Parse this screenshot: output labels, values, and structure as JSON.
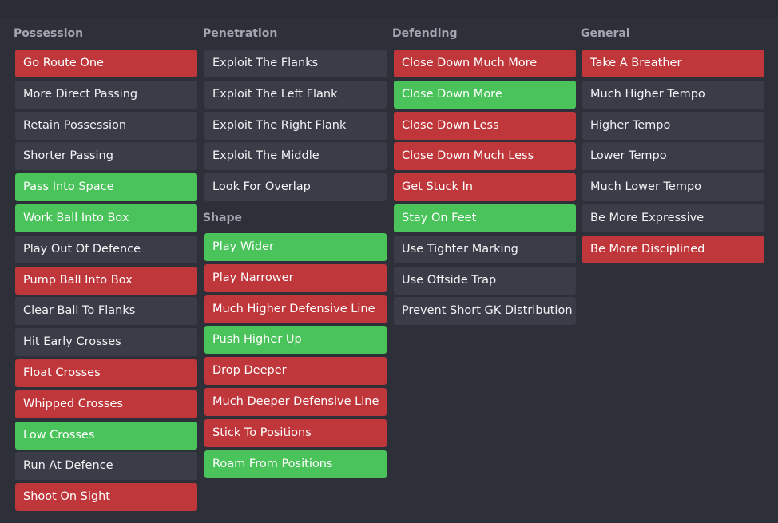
{
  "colors": {
    "red": "#c0373b",
    "green": "#49c35a",
    "neutral": "#3a3c47",
    "background": "#2e3039"
  },
  "columns": {
    "possession": {
      "title": "Possession",
      "items": [
        {
          "label": "Go Route One",
          "state": "red"
        },
        {
          "label": "More Direct Passing",
          "state": "neutral"
        },
        {
          "label": "Retain Possession",
          "state": "neutral"
        },
        {
          "label": "Shorter Passing",
          "state": "neutral"
        },
        {
          "label": "Pass Into Space",
          "state": "green"
        },
        {
          "label": "Work Ball Into Box",
          "state": "green"
        },
        {
          "label": "Play Out Of Defence",
          "state": "neutral"
        },
        {
          "label": "Pump Ball Into Box",
          "state": "red"
        },
        {
          "label": "Clear Ball To Flanks",
          "state": "neutral"
        },
        {
          "label": "Hit Early Crosses",
          "state": "neutral"
        },
        {
          "label": "Float Crosses",
          "state": "red"
        },
        {
          "label": "Whipped Crosses",
          "state": "red"
        },
        {
          "label": "Low Crosses",
          "state": "green"
        },
        {
          "label": "Run At Defence",
          "state": "neutral"
        },
        {
          "label": "Shoot On Sight",
          "state": "red"
        }
      ]
    },
    "penetration": {
      "title": "Penetration",
      "items": [
        {
          "label": "Exploit The Flanks",
          "state": "neutral"
        },
        {
          "label": "Exploit The Left Flank",
          "state": "neutral"
        },
        {
          "label": "Exploit The Right Flank",
          "state": "neutral"
        },
        {
          "label": "Exploit The Middle",
          "state": "neutral"
        },
        {
          "label": "Look For Overlap",
          "state": "neutral"
        }
      ]
    },
    "shape": {
      "title": "Shape",
      "items": [
        {
          "label": "Play Wider",
          "state": "green"
        },
        {
          "label": "Play Narrower",
          "state": "red"
        },
        {
          "label": "Much Higher Defensive Line",
          "state": "red"
        },
        {
          "label": "Push Higher Up",
          "state": "green"
        },
        {
          "label": "Drop Deeper",
          "state": "red"
        },
        {
          "label": "Much Deeper Defensive Line",
          "state": "red"
        },
        {
          "label": "Stick To Positions",
          "state": "red"
        },
        {
          "label": "Roam From Positions",
          "state": "green"
        }
      ]
    },
    "defending": {
      "title": "Defending",
      "items": [
        {
          "label": "Close Down Much More",
          "state": "red"
        },
        {
          "label": "Close Down More",
          "state": "green"
        },
        {
          "label": "Close Down Less",
          "state": "red"
        },
        {
          "label": "Close Down Much Less",
          "state": "red"
        },
        {
          "label": "Get Stuck In",
          "state": "red"
        },
        {
          "label": "Stay On Feet",
          "state": "green"
        },
        {
          "label": "Use Tighter Marking",
          "state": "neutral"
        },
        {
          "label": "Use Offside Trap",
          "state": "neutral"
        },
        {
          "label": "Prevent Short GK Distribution",
          "state": "neutral"
        }
      ]
    },
    "general": {
      "title": "General",
      "items": [
        {
          "label": "Take A Breather",
          "state": "red"
        },
        {
          "label": "Much Higher Tempo",
          "state": "neutral"
        },
        {
          "label": "Higher Tempo",
          "state": "neutral"
        },
        {
          "label": "Lower Tempo",
          "state": "neutral"
        },
        {
          "label": "Much Lower Tempo",
          "state": "neutral"
        },
        {
          "label": "Be More Expressive",
          "state": "neutral"
        },
        {
          "label": "Be More Disciplined",
          "state": "red"
        }
      ]
    }
  }
}
